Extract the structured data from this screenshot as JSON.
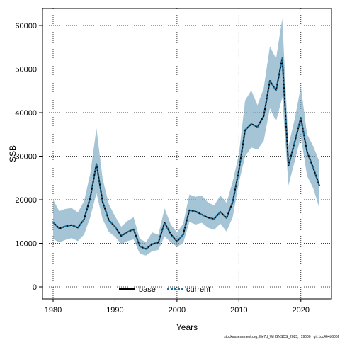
{
  "chart_data": {
    "type": "line",
    "xlabel": "Years",
    "ylabel": "SSB",
    "xlim": [
      1980,
      2023
    ],
    "ylim": [
      0,
      60000
    ],
    "x_ticks": [
      "1980",
      "1990",
      "2000",
      "2010",
      "2020"
    ],
    "y_ticks": [
      "0",
      "10000",
      "20000",
      "30000",
      "40000",
      "50000",
      "60000"
    ],
    "grid": true,
    "legend_position": "bottom-center",
    "x": [
      1980,
      1981,
      1982,
      1983,
      1984,
      1985,
      1986,
      1987,
      1988,
      1989,
      1990,
      1991,
      1992,
      1993,
      1994,
      1995,
      1996,
      1997,
      1998,
      1999,
      2000,
      2001,
      2002,
      2003,
      2004,
      2005,
      2006,
      2007,
      2008,
      2009,
      2010,
      2011,
      2012,
      2013,
      2014,
      2015,
      2016,
      2017,
      2018,
      2019,
      2020,
      2021,
      2022,
      2023
    ],
    "series": [
      {
        "name": "base",
        "style": "solid",
        "color": "#000000",
        "values": [
          14800,
          13400,
          13900,
          14200,
          13600,
          15500,
          20500,
          28200,
          19500,
          15300,
          13800,
          11700,
          12600,
          13200,
          9300,
          8700,
          9800,
          10200,
          14700,
          12100,
          10400,
          12000,
          17600,
          17300,
          16600,
          15900,
          15600,
          17200,
          15800,
          19500,
          26800,
          36000,
          37400,
          36700,
          39200,
          47300,
          45100,
          52500,
          27800,
          33200,
          38800,
          31000,
          27300,
          23200
        ]
      },
      {
        "name": "current",
        "style": "dashed",
        "color": "#1a6e99",
        "values": [
          14800,
          13400,
          13900,
          14200,
          13600,
          15500,
          20500,
          28200,
          19500,
          15300,
          13800,
          11700,
          12600,
          13200,
          9300,
          8700,
          9800,
          10200,
          14700,
          12100,
          10400,
          12000,
          17600,
          17300,
          16600,
          15900,
          15600,
          17200,
          15800,
          19500,
          26800,
          36000,
          37400,
          36700,
          39200,
          47300,
          45100,
          52500,
          27800,
          33200,
          38800,
          31000,
          27300,
          23200
        ]
      }
    ],
    "band": {
      "color": "#7aa9c2",
      "lower": [
        11000,
        10200,
        10800,
        11200,
        10500,
        12000,
        16000,
        21500,
        15500,
        12600,
        11500,
        9800,
        10500,
        10900,
        7600,
        7200,
        8200,
        8500,
        11600,
        10200,
        9200,
        10000,
        14900,
        14300,
        14700,
        13600,
        13100,
        14500,
        12700,
        16000,
        24000,
        30000,
        32000,
        31500,
        33500,
        41000,
        38000,
        43500,
        23300,
        28800,
        34500,
        25500,
        22600,
        18000
      ],
      "upper": [
        20000,
        17400,
        17900,
        18100,
        17100,
        19700,
        26000,
        36400,
        24800,
        19000,
        16200,
        13800,
        15100,
        16000,
        11000,
        10300,
        12500,
        12000,
        18000,
        14300,
        12500,
        14500,
        21200,
        20700,
        21000,
        19400,
        18700,
        21000,
        19300,
        24200,
        30500,
        42800,
        45100,
        41700,
        45600,
        55200,
        52400,
        61600,
        32400,
        38500,
        46000,
        35000,
        32300,
        28700
      ]
    }
  },
  "footer_text": "stockassessment.org, file7d_WHBNSCS_2025, r19000 , git:1cc464b606f"
}
